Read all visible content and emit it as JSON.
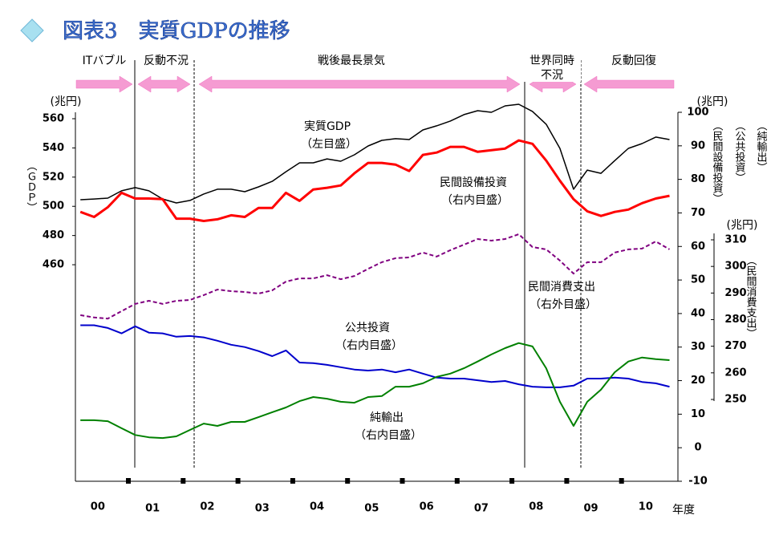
{
  "chart_data": {
    "type": "line",
    "title": "図表3　実質GDPの推移",
    "periods": [
      [
        "ITバブル"
      ],
      [
        "反動不況"
      ],
      [
        "戦後最長景気"
      ],
      [
        "世界同時",
        "不況"
      ],
      [
        "反動回復"
      ]
    ],
    "x": [
      0.125,
      0.375,
      0.625,
      0.875,
      1.125,
      1.375,
      1.625,
      1.875,
      2.125,
      2.375,
      2.625,
      2.875,
      3.125,
      3.375,
      3.625,
      3.875,
      4.125,
      4.375,
      4.625,
      4.875,
      5.125,
      5.375,
      5.625,
      5.875,
      6.125,
      6.375,
      6.625,
      6.875,
      7.125,
      7.375,
      7.625,
      7.875,
      8.125,
      8.375,
      8.625,
      8.875,
      9.125,
      9.375,
      9.625,
      9.875,
      10.125,
      10.375,
      10.625,
      10.875
    ],
    "xlim": [
      0,
      11
    ],
    "xticks": [
      1,
      2,
      3,
      4,
      5,
      6,
      7,
      8,
      9,
      10
    ],
    "year_labels": [
      "00",
      "01",
      "02",
      "03",
      "04",
      "05",
      "06",
      "07",
      "08",
      "09",
      "10"
    ],
    "x_label": "年度",
    "ylim": [
      311.7,
      564.4
    ],
    "yticks": [
      460,
      480,
      500,
      520,
      540,
      560
    ],
    "y_unit": "(兆円)",
    "y_label": "（ＧＤＰ）",
    "y2lim": [
      -10,
      100
    ],
    "y2ticks": [
      -10,
      0,
      10,
      20,
      30,
      40,
      50,
      60,
      70,
      80,
      90,
      100
    ],
    "y2_unit": "(兆円)",
    "y2_labels": [
      "（民間設備投資）",
      "（公共投資）",
      "（純輸出）"
    ],
    "y3lim": [
      250,
      310
    ],
    "y3ticks": [
      250,
      260,
      270,
      280,
      290,
      300,
      310
    ],
    "y3_unit": "(兆円)",
    "y3_label": "（民間消費支出）",
    "series": [
      {
        "name": "実質GDP",
        "note": "（左目盛）",
        "axis": "y",
        "color": "#000000",
        "values": [
          504.5,
          505,
          505.6,
          510.6,
          512.8,
          510.6,
          505,
          502.3,
          504,
          508.4,
          511.7,
          511.7,
          510,
          513.3,
          517.1,
          523.7,
          529.8,
          529.8,
          532.5,
          530.9,
          535.3,
          541.3,
          545.2,
          546.3,
          545.7,
          552.3,
          555.1,
          558.4,
          562.8,
          565.5,
          564.4,
          568.8,
          569.9,
          565,
          556.2,
          539.7,
          511.7,
          524.8,
          522.6,
          531.3,
          539.7,
          543,
          547.4,
          545.7
        ]
      },
      {
        "name": "民間設備投資",
        "note": "（右内目盛）",
        "axis": "y2",
        "color": "#ff0000",
        "values": [
          70.3,
          68.8,
          71.7,
          76.0,
          74.3,
          74.3,
          74.1,
          68.3,
          68.3,
          67.6,
          68.1,
          69.3,
          68.8,
          71.5,
          71.5,
          76.0,
          73.6,
          77.0,
          77.5,
          78.2,
          81.8,
          84.9,
          84.9,
          84.4,
          82.5,
          87.3,
          88.0,
          89.7,
          89.7,
          88.2,
          88.7,
          89.2,
          91.6,
          90.6,
          85.6,
          79.6,
          74.1,
          70.5,
          69.1,
          70.3,
          71.0,
          72.9,
          74.3,
          75.1
        ]
      },
      {
        "name": "民間消費支出",
        "note": "（右外目盛）",
        "axis": "y3",
        "color": "#800080",
        "dashed": true,
        "values": [
          281.7,
          280.8,
          280.4,
          283.2,
          285.9,
          287.1,
          285.9,
          287.1,
          287.4,
          289.2,
          291.3,
          290.7,
          290.4,
          289.8,
          291.0,
          294.3,
          295.5,
          295.5,
          296.7,
          295.2,
          296.4,
          299.1,
          301.6,
          303.1,
          303.4,
          305.2,
          303.7,
          306.1,
          308.2,
          310.3,
          309.7,
          310.3,
          312.1,
          307.3,
          306.4,
          302.2,
          297.3,
          301.6,
          301.6,
          305.2,
          306.4,
          306.7,
          309.4,
          306.4
        ]
      },
      {
        "name": "公共投資",
        "note": "（右内目盛）",
        "axis": "y2",
        "color": "#0000cc",
        "values": [
          36.5,
          36.5,
          35.7,
          34.1,
          36.2,
          34.3,
          34.1,
          33.1,
          33.3,
          32.9,
          31.9,
          30.7,
          30.0,
          28.8,
          27.3,
          29.0,
          25.4,
          25.2,
          24.7,
          24.0,
          23.3,
          23.0,
          23.3,
          22.5,
          23.3,
          22.1,
          20.9,
          20.6,
          20.6,
          20.1,
          19.6,
          19.9,
          18.9,
          18.2,
          18.0,
          18.0,
          18.5,
          20.6,
          20.6,
          20.9,
          20.6,
          19.6,
          19.2,
          18.2
        ]
      },
      {
        "name": "純輸出",
        "note": "（右内目盛）",
        "axis": "y2",
        "color": "#008000",
        "values": [
          8.2,
          8.2,
          7.9,
          5.8,
          3.8,
          3.1,
          2.9,
          3.4,
          5.3,
          7.2,
          6.5,
          7.7,
          7.7,
          9.1,
          10.6,
          12.0,
          13.9,
          15.1,
          14.6,
          13.7,
          13.4,
          15.1,
          15.4,
          18.2,
          18.2,
          19.2,
          21.1,
          22.1,
          23.7,
          25.7,
          27.8,
          29.7,
          31.2,
          30.2,
          23.7,
          13.7,
          6.5,
          13.7,
          17.3,
          22.5,
          25.7,
          26.9,
          26.4,
          26.1
        ]
      }
    ]
  }
}
